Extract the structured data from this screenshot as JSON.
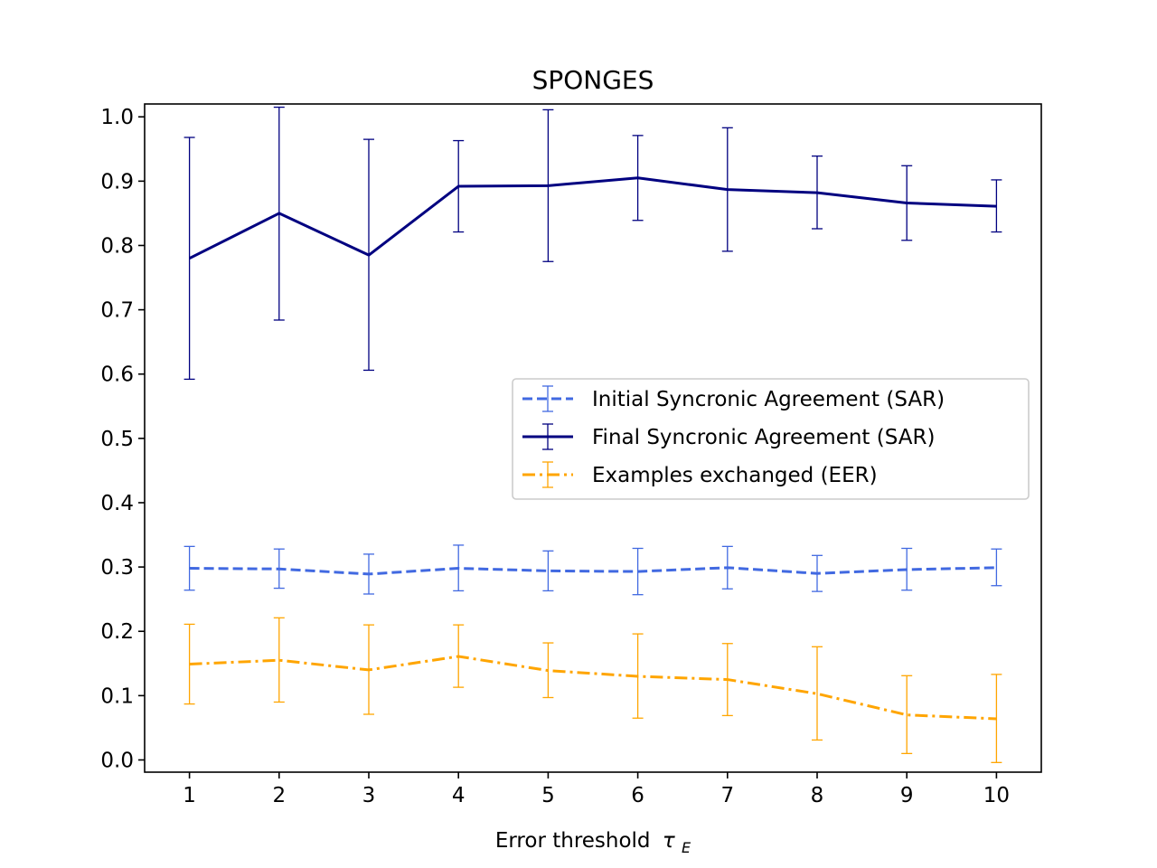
{
  "chart_data": {
    "type": "line",
    "title": "SPONGES",
    "xlabel": "Error threshold",
    "xlabel_symbol": "τ",
    "xlabel_subscript": "E",
    "ylabel": "",
    "x": [
      1,
      2,
      3,
      4,
      5,
      6,
      7,
      8,
      9,
      10
    ],
    "xticks": [
      "1",
      "2",
      "3",
      "4",
      "5",
      "6",
      "7",
      "8",
      "9",
      "10"
    ],
    "yticks": [
      "0.0",
      "0.1",
      "0.2",
      "0.3",
      "0.4",
      "0.5",
      "0.6",
      "0.7",
      "0.8",
      "0.9",
      "1.0"
    ],
    "ytick_values": [
      0.0,
      0.1,
      0.2,
      0.3,
      0.4,
      0.5,
      0.6,
      0.7,
      0.8,
      0.9,
      1.0
    ],
    "xlim": [
      0.5,
      10.5
    ],
    "ylim": [
      -0.019,
      1.02
    ],
    "grid": false,
    "legend_position": "center-right",
    "series": [
      {
        "name": "Initial Syncronic Agreement (SAR)",
        "color": "#4169e1",
        "style": "dashed",
        "values": [
          0.298,
          0.297,
          0.289,
          0.298,
          0.294,
          0.293,
          0.299,
          0.29,
          0.296,
          0.299
        ],
        "err_low": [
          0.264,
          0.267,
          0.258,
          0.263,
          0.263,
          0.257,
          0.266,
          0.262,
          0.264,
          0.271
        ],
        "err_high": [
          0.332,
          0.328,
          0.32,
          0.334,
          0.325,
          0.329,
          0.332,
          0.318,
          0.329,
          0.328
        ]
      },
      {
        "name": "Final Syncronic Agreement (SAR)",
        "color": "#000080",
        "style": "solid",
        "values": [
          0.78,
          0.85,
          0.785,
          0.892,
          0.893,
          0.905,
          0.887,
          0.882,
          0.866,
          0.861
        ],
        "err_low": [
          0.592,
          0.684,
          0.606,
          0.821,
          0.775,
          0.839,
          0.791,
          0.826,
          0.808,
          0.821
        ],
        "err_high": [
          0.968,
          1.015,
          0.965,
          0.963,
          1.011,
          0.971,
          0.983,
          0.939,
          0.924,
          0.902
        ]
      },
      {
        "name": "Examples exchanged (EER)",
        "color": "#ffa500",
        "style": "dashdot",
        "values": [
          0.149,
          0.155,
          0.14,
          0.161,
          0.139,
          0.13,
          0.125,
          0.103,
          0.07,
          0.064
        ],
        "err_low": [
          0.087,
          0.09,
          0.071,
          0.113,
          0.097,
          0.065,
          0.069,
          0.031,
          0.01,
          -0.004
        ],
        "err_high": [
          0.211,
          0.221,
          0.21,
          0.21,
          0.182,
          0.196,
          0.181,
          0.176,
          0.131,
          0.133
        ]
      }
    ]
  }
}
